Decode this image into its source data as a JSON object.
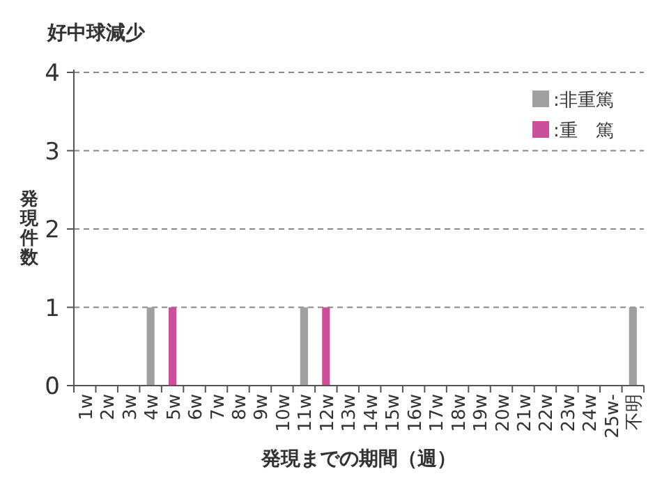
{
  "chart_data": {
    "type": "bar",
    "title": "好中球減少",
    "xlabel": "発現までの期間（週）",
    "ylabel": "発現件数",
    "categories": [
      "1w",
      "2w",
      "3w",
      "4w",
      "5w",
      "6w",
      "7w",
      "8w",
      "9w",
      "10w",
      "11w",
      "12w",
      "13w",
      "14w",
      "15w",
      "16w",
      "17w",
      "18w",
      "19w",
      "20w",
      "21w",
      "22w",
      "23w",
      "24w",
      "25w-",
      "不明"
    ],
    "series": [
      {
        "name": ":非重篤",
        "color": "#a0a0a0",
        "values": [
          0,
          0,
          0,
          1,
          0,
          0,
          0,
          0,
          0,
          0,
          1,
          0,
          0,
          0,
          0,
          0,
          0,
          0,
          0,
          0,
          0,
          0,
          0,
          0,
          0,
          1
        ]
      },
      {
        "name": ":重　篤",
        "color": "#cc4f9c",
        "values": [
          0,
          0,
          0,
          0,
          1,
          0,
          0,
          0,
          0,
          0,
          0,
          1,
          0,
          0,
          0,
          0,
          0,
          0,
          0,
          0,
          0,
          0,
          0,
          0,
          0,
          0
        ]
      }
    ],
    "ylim": [
      0,
      4
    ],
    "yticks": [
      0,
      1,
      2,
      3,
      4
    ],
    "grid": "y",
    "legend": "top right"
  }
}
